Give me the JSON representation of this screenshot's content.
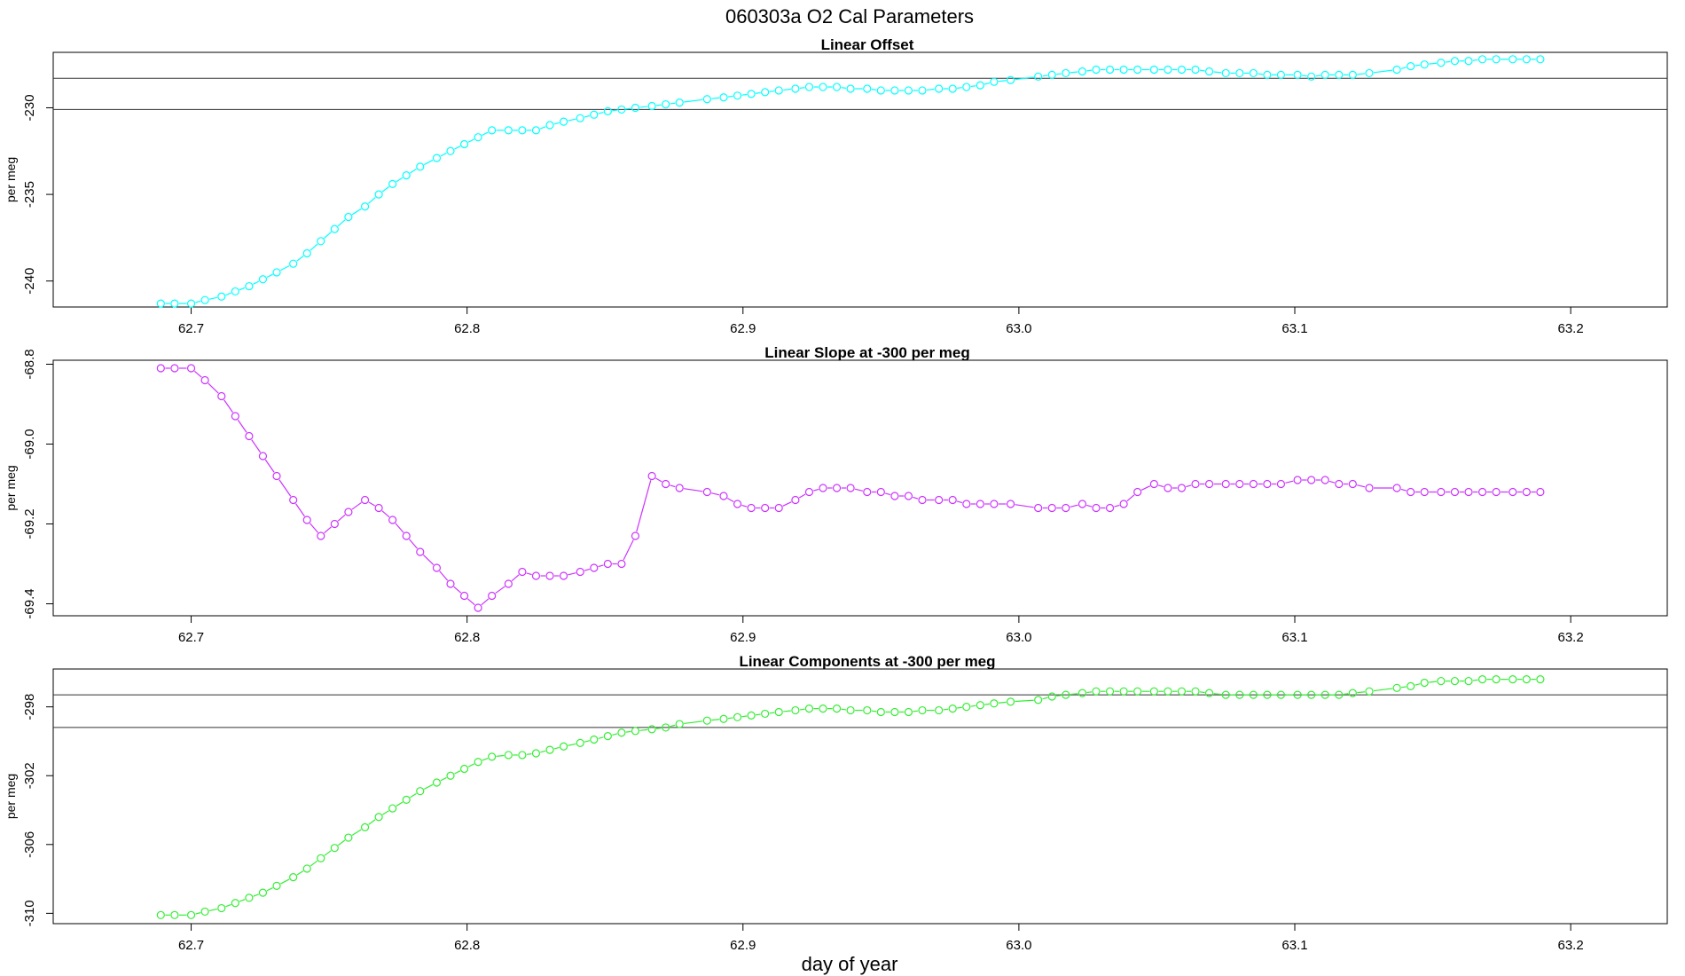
{
  "title": "060303a   O2 Cal Parameters",
  "xlabel": "day of year",
  "colors": {
    "offset": "#00ffff",
    "slope": "#cc33ff",
    "components": "#33ee33",
    "axis": "#000000"
  },
  "x": [
    62.689,
    62.694,
    62.7,
    62.705,
    62.711,
    62.716,
    62.721,
    62.726,
    62.731,
    62.737,
    62.742,
    62.747,
    62.752,
    62.757,
    62.763,
    62.768,
    62.773,
    62.778,
    62.783,
    62.789,
    62.794,
    62.799,
    62.804,
    62.809,
    62.815,
    62.82,
    62.825,
    62.83,
    62.835,
    62.841,
    62.846,
    62.851,
    62.856,
    62.861,
    62.867,
    62.872,
    62.877,
    62.887,
    62.893,
    62.898,
    62.903,
    62.908,
    62.913,
    62.919,
    62.924,
    62.929,
    62.934,
    62.939,
    62.945,
    62.95,
    62.955,
    62.96,
    62.965,
    62.971,
    62.976,
    62.981,
    62.986,
    62.991,
    62.997,
    63.007,
    63.012,
    63.017,
    63.023,
    63.028,
    63.033,
    63.038,
    63.043,
    63.049,
    63.054,
    63.059,
    63.064,
    63.069,
    63.075,
    63.08,
    63.085,
    63.09,
    63.095,
    63.101,
    63.106,
    63.111,
    63.116,
    63.121,
    63.127,
    63.137,
    63.142,
    63.147,
    63.153,
    63.158,
    63.163,
    63.168,
    63.173,
    63.179,
    63.184,
    63.189
  ],
  "chart_data": [
    {
      "type": "line",
      "title": "Linear Offset",
      "ylabel": "per meg",
      "ylim": [
        -241.5,
        -226.8
      ],
      "xlim": [
        62.65,
        63.235
      ],
      "x_ticks": [
        62.7,
        62.8,
        62.9,
        63.0,
        63.1,
        63.2
      ],
      "x_tick_labels": [
        "62.7",
        "62.8",
        "62.9",
        "63.0",
        "63.1",
        "63.2"
      ],
      "y_ticks": [
        -240,
        -235,
        -230
      ],
      "y_tick_labels": [
        "-240",
        "-235",
        "-230"
      ],
      "reference_lines": [
        -228.3,
        -230.1
      ],
      "series": [
        {
          "name": "Linear Offset",
          "values": [
            -241.3,
            -241.3,
            -241.3,
            -241.1,
            -240.9,
            -240.6,
            -240.3,
            -239.9,
            -239.5,
            -239.0,
            -238.4,
            -237.7,
            -237.0,
            -236.3,
            -235.7,
            -235.0,
            -234.4,
            -233.9,
            -233.4,
            -232.9,
            -232.5,
            -232.1,
            -231.7,
            -231.3,
            -231.3,
            -231.3,
            -231.3,
            -231.0,
            -230.8,
            -230.6,
            -230.4,
            -230.2,
            -230.1,
            -230.0,
            -229.9,
            -229.8,
            -229.7,
            -229.5,
            -229.4,
            -229.3,
            -229.2,
            -229.1,
            -229.0,
            -228.9,
            -228.8,
            -228.8,
            -228.8,
            -228.9,
            -228.9,
            -229.0,
            -229.0,
            -229.0,
            -229.0,
            -228.9,
            -228.9,
            -228.8,
            -228.7,
            -228.5,
            -228.4,
            -228.2,
            -228.1,
            -228.0,
            -227.9,
            -227.8,
            -227.8,
            -227.8,
            -227.8,
            -227.8,
            -227.8,
            -227.8,
            -227.8,
            -227.9,
            -228.0,
            -228.0,
            -228.0,
            -228.1,
            -228.1,
            -228.1,
            -228.2,
            -228.1,
            -228.1,
            -228.1,
            -228.0,
            -227.8,
            -227.6,
            -227.5,
            -227.4,
            -227.3,
            -227.3,
            -227.2,
            -227.2,
            -227.2,
            -227.2,
            -227.2
          ]
        }
      ]
    },
    {
      "type": "line",
      "title": "Linear Slope at -300 per meg",
      "ylabel": "per meg",
      "ylim": [
        -69.43,
        -68.79
      ],
      "xlim": [
        62.65,
        63.235
      ],
      "x_ticks": [
        62.7,
        62.8,
        62.9,
        63.0,
        63.1,
        63.2
      ],
      "x_tick_labels": [
        "62.7",
        "62.8",
        "62.9",
        "63.0",
        "63.1",
        "63.2"
      ],
      "y_ticks": [
        -69.4,
        -69.2,
        -69.0,
        -68.8
      ],
      "y_tick_labels": [
        "-69.4",
        "-69.2",
        "-69.0",
        "-68.8"
      ],
      "reference_lines": [],
      "series": [
        {
          "name": "Linear Slope",
          "values": [
            -68.81,
            -68.81,
            -68.81,
            -68.84,
            -68.88,
            -68.93,
            -68.98,
            -69.03,
            -69.08,
            -69.14,
            -69.19,
            -69.23,
            -69.2,
            -69.17,
            -69.14,
            -69.16,
            -69.19,
            -69.23,
            -69.27,
            -69.31,
            -69.35,
            -69.38,
            -69.41,
            -69.38,
            -69.35,
            -69.32,
            -69.33,
            -69.33,
            -69.33,
            -69.32,
            -69.31,
            -69.3,
            -69.3,
            -69.23,
            -69.08,
            -69.1,
            -69.11,
            -69.12,
            -69.13,
            -69.15,
            -69.16,
            -69.16,
            -69.16,
            -69.14,
            -69.12,
            -69.11,
            -69.11,
            -69.11,
            -69.12,
            -69.12,
            -69.13,
            -69.13,
            -69.14,
            -69.14,
            -69.14,
            -69.15,
            -69.15,
            -69.15,
            -69.15,
            -69.16,
            -69.16,
            -69.16,
            -69.15,
            -69.16,
            -69.16,
            -69.15,
            -69.12,
            -69.1,
            -69.11,
            -69.11,
            -69.1,
            -69.1,
            -69.1,
            -69.1,
            -69.1,
            -69.1,
            -69.1,
            -69.09,
            -69.09,
            -69.09,
            -69.1,
            -69.1,
            -69.11,
            -69.11,
            -69.12,
            -69.12,
            -69.12,
            -69.12,
            -69.12,
            -69.12,
            -69.12,
            -69.12,
            -69.12,
            -69.12
          ]
        }
      ]
    },
    {
      "type": "line",
      "title": "Linear Components at -300 per meg",
      "ylabel": "per meg",
      "ylim": [
        -310.6,
        -295.8
      ],
      "xlim": [
        62.65,
        63.235
      ],
      "x_ticks": [
        62.7,
        62.8,
        62.9,
        63.0,
        63.1,
        63.2
      ],
      "x_tick_labels": [
        "62.7",
        "62.8",
        "62.9",
        "63.0",
        "63.1",
        "63.2"
      ],
      "y_ticks": [
        -310,
        -306,
        -302,
        -298
      ],
      "y_tick_labels": [
        "-310",
        "-306",
        "-302",
        "-298"
      ],
      "reference_lines": [
        -297.3,
        -299.2
      ],
      "series": [
        {
          "name": "Linear Components",
          "values": [
            -310.1,
            -310.1,
            -310.1,
            -309.9,
            -309.7,
            -309.4,
            -309.1,
            -308.8,
            -308.4,
            -307.9,
            -307.4,
            -306.8,
            -306.2,
            -305.6,
            -305.0,
            -304.4,
            -303.9,
            -303.4,
            -302.9,
            -302.4,
            -302.0,
            -301.6,
            -301.2,
            -300.9,
            -300.8,
            -300.8,
            -300.7,
            -300.5,
            -300.3,
            -300.1,
            -299.9,
            -299.7,
            -299.5,
            -299.4,
            -299.3,
            -299.2,
            -299.0,
            -298.8,
            -298.7,
            -298.6,
            -298.5,
            -298.4,
            -298.3,
            -298.2,
            -298.1,
            -298.1,
            -298.1,
            -298.2,
            -298.2,
            -298.3,
            -298.3,
            -298.3,
            -298.2,
            -298.2,
            -298.1,
            -298.0,
            -297.9,
            -297.8,
            -297.7,
            -297.6,
            -297.4,
            -297.3,
            -297.2,
            -297.1,
            -297.1,
            -297.1,
            -297.1,
            -297.1,
            -297.1,
            -297.1,
            -297.1,
            -297.2,
            -297.3,
            -297.3,
            -297.3,
            -297.3,
            -297.3,
            -297.3,
            -297.3,
            -297.3,
            -297.3,
            -297.2,
            -297.1,
            -296.9,
            -296.8,
            -296.6,
            -296.5,
            -296.5,
            -296.5,
            -296.4,
            -296.4,
            -296.4,
            -296.4,
            -296.4
          ]
        }
      ]
    }
  ]
}
